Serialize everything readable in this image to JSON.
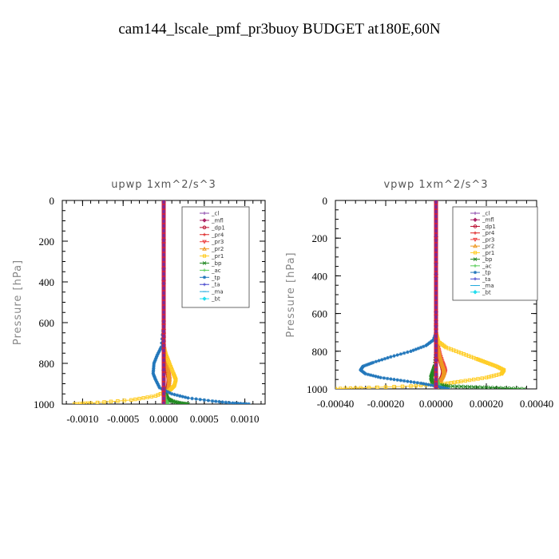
{
  "figure": {
    "title": "cam144_lscale_pmf_pr3buoy  BUDGET at180E,60N"
  },
  "chart_data": [
    {
      "type": "line",
      "title": "upwp   1xm^2/s^3",
      "xlabel": "",
      "ylabel": "Pressure [hPa]",
      "xlim": [
        -0.00125,
        0.00125
      ],
      "ylim": [
        1000,
        0
      ],
      "xticks": [
        -0.001,
        -0.0005,
        0,
        0.0005,
        0.001
      ],
      "xtick_labels": [
        "-0.0010",
        "-0.0005",
        "0.0000",
        "0.0005",
        "0.0010"
      ],
      "yticks": [
        0,
        200,
        400,
        600,
        800,
        1000
      ],
      "ytick_labels": [
        "0",
        "200",
        "400",
        "600",
        "800",
        "1000"
      ],
      "grid": false,
      "legend_position": "top-right",
      "series": [
        {
          "name": "_cl",
          "color": "#8844aa",
          "marker": "plus",
          "x": [
            0,
            0
          ],
          "y": [
            0,
            1000
          ]
        },
        {
          "name": "_mfl",
          "color": "#aa2266",
          "marker": "diamond",
          "x": [
            0,
            0
          ],
          "y": [
            0,
            1000
          ]
        },
        {
          "name": "_dp1",
          "color": "#bb1133",
          "marker": "circle",
          "x": [
            0,
            0,
            0,
            1e-05,
            3e-05,
            5e-05,
            6e-05,
            5e-05,
            3e-05,
            1e-05,
            0
          ],
          "y": [
            0,
            600,
            720,
            760,
            800,
            850,
            880,
            920,
            950,
            980,
            1000
          ]
        },
        {
          "name": "_pr4",
          "color": "#dd2222",
          "marker": "plus",
          "x": [
            0,
            0,
            0,
            1e-05,
            3e-05,
            5e-05,
            6e-05,
            5e-05,
            3e-05,
            1e-05,
            0
          ],
          "y": [
            0,
            600,
            720,
            760,
            800,
            850,
            880,
            920,
            950,
            980,
            1000
          ]
        },
        {
          "name": "_pr3",
          "color": "#ee4444",
          "marker": "triangle-down",
          "x": [
            0,
            0,
            0,
            2e-05,
            4e-05,
            6e-05,
            7e-05,
            6e-05,
            4e-05,
            2e-05,
            0
          ],
          "y": [
            0,
            600,
            720,
            760,
            800,
            850,
            880,
            920,
            950,
            980,
            1000
          ]
        },
        {
          "name": "_pr2",
          "color": "#ee9922",
          "marker": "triangle",
          "x": [
            0,
            0,
            0,
            2e-05,
            4e-05,
            6e-05,
            7e-05,
            6e-05,
            3e-05,
            1e-05,
            0
          ],
          "y": [
            0,
            600,
            720,
            760,
            800,
            850,
            880,
            920,
            950,
            980,
            1000
          ]
        },
        {
          "name": "_pr1",
          "color": "#ffcc22",
          "marker": "square",
          "x": [
            0,
            0,
            0,
            3e-05,
            7e-05,
            0.00012,
            0.00015,
            0.00013,
            8e-05,
            -0.0001,
            -0.0004,
            -0.0009,
            -0.0011
          ],
          "y": [
            0,
            600,
            720,
            760,
            800,
            850,
            880,
            910,
            930,
            960,
            980,
            995,
            1000
          ]
        },
        {
          "name": "_bp",
          "color": "#228822",
          "marker": "x",
          "x": [
            0,
            0,
            0,
            0,
            1e-05,
            3e-05,
            5e-05,
            0.0001,
            0.0002,
            0.0003
          ],
          "y": [
            0,
            600,
            800,
            900,
            940,
            960,
            975,
            985,
            995,
            1000
          ]
        },
        {
          "name": "_ac",
          "color": "#55cc55",
          "marker": "plus",
          "x": [
            0,
            0,
            0,
            1e-05,
            2e-05,
            4e-05,
            5e-05
          ],
          "y": [
            0,
            600,
            900,
            950,
            975,
            990,
            1000
          ]
        },
        {
          "name": "_tp",
          "color": "#2277bb",
          "marker": "asterisk",
          "x": [
            0,
            0,
            -3e-05,
            -8e-05,
            -0.00012,
            -0.00013,
            -0.0001,
            -5e-05,
            0.0001,
            0.0003,
            0.0006,
            0.00085,
            0.00105
          ],
          "y": [
            0,
            600,
            720,
            760,
            800,
            850,
            880,
            920,
            950,
            970,
            985,
            995,
            1000
          ]
        },
        {
          "name": "_ta",
          "color": "#4444cc",
          "marker": "plus",
          "x": [
            0,
            0
          ],
          "y": [
            0,
            1000
          ]
        },
        {
          "name": "_ma",
          "color": "#22aadd",
          "marker": "dash",
          "x": [
            0,
            0
          ],
          "y": [
            0,
            1000
          ]
        },
        {
          "name": "_bt",
          "color": "#22ddee",
          "marker": "diamond",
          "x": [
            0,
            0
          ],
          "y": [
            0,
            1000
          ]
        }
      ]
    },
    {
      "type": "line",
      "title": "vpwp   1xm^2/s^3",
      "xlabel": "",
      "ylabel": "Pressure [hPa]",
      "xlim": [
        -0.0004,
        0.0004
      ],
      "ylim": [
        1000,
        0
      ],
      "xticks": [
        -0.0004,
        -0.0002,
        0,
        0.0002,
        0.0004
      ],
      "xtick_labels": [
        "-0.00040",
        "-0.00020",
        "0.00000",
        "0.00020",
        "0.00040"
      ],
      "yticks": [
        0,
        200,
        400,
        600,
        800,
        1000
      ],
      "ytick_labels": [
        "0",
        "200",
        "400",
        "600",
        "800",
        "1000"
      ],
      "grid": false,
      "legend_position": "top-right",
      "series": [
        {
          "name": "_cl",
          "color": "#8844aa",
          "marker": "plus",
          "x": [
            0,
            0
          ],
          "y": [
            0,
            1000
          ]
        },
        {
          "name": "_mfl",
          "color": "#aa2266",
          "marker": "diamond",
          "x": [
            0,
            0
          ],
          "y": [
            0,
            1000
          ]
        },
        {
          "name": "_dp1",
          "color": "#bb1133",
          "marker": "circle",
          "x": [
            0,
            0,
            0,
            5e-06,
            1e-05,
            1.8e-05,
            2.5e-05,
            2.8e-05,
            2.5e-05,
            1.8e-05,
            1e-05,
            5e-06,
            0
          ],
          "y": [
            0,
            600,
            740,
            780,
            820,
            860,
            890,
            910,
            930,
            950,
            970,
            985,
            1000
          ]
        },
        {
          "name": "_pr4",
          "color": "#dd2222",
          "marker": "plus",
          "x": [
            0,
            0,
            0,
            6e-06,
            1.2e-05,
            2e-05,
            2.8e-05,
            3e-05,
            2.8e-05,
            2e-05,
            1.2e-05,
            5e-06,
            0
          ],
          "y": [
            0,
            600,
            740,
            780,
            820,
            860,
            890,
            910,
            930,
            950,
            970,
            985,
            1000
          ]
        },
        {
          "name": "_pr3",
          "color": "#ee4444",
          "marker": "triangle-down",
          "x": [
            0,
            0,
            0,
            8e-06,
            1.5e-05,
            2.5e-05,
            3.3e-05,
            3.6e-05,
            3.2e-05,
            2.4e-05,
            1.4e-05,
            6e-06,
            0
          ],
          "y": [
            0,
            600,
            740,
            780,
            820,
            860,
            890,
            910,
            930,
            950,
            970,
            985,
            1000
          ]
        },
        {
          "name": "_pr2",
          "color": "#ee9922",
          "marker": "triangle",
          "x": [
            0,
            0,
            0,
            7e-06,
            1.4e-05,
            2.2e-05,
            3e-05,
            3.2e-05,
            2.8e-05,
            2e-05,
            1.2e-05,
            5e-06,
            0
          ],
          "y": [
            0,
            600,
            740,
            780,
            820,
            860,
            890,
            910,
            930,
            950,
            970,
            985,
            1000
          ]
        },
        {
          "name": "_pr1",
          "color": "#ffcc22",
          "marker": "square",
          "x": [
            0,
            0,
            1e-05,
            4e-05,
            0.0001,
            0.00016,
            0.0002,
            0.00024,
            0.00027,
            0.00026,
            0.0002,
            0.0001,
            2e-05,
            -0.0001,
            -0.0003,
            -0.00042
          ],
          "y": [
            0,
            700,
            750,
            780,
            810,
            840,
            860,
            880,
            900,
            920,
            940,
            960,
            975,
            985,
            995,
            1000
          ]
        },
        {
          "name": "_bp",
          "color": "#228822",
          "marker": "x",
          "x": [
            0,
            0,
            0,
            -5e-06,
            -1e-05,
            -1.5e-05,
            -2e-05,
            -1.5e-05,
            0,
            5e-05,
            0.00015,
            0.00025,
            0.00035
          ],
          "y": [
            0,
            600,
            800,
            880,
            900,
            920,
            940,
            960,
            975,
            985,
            990,
            995,
            1000
          ]
        },
        {
          "name": "_ac",
          "color": "#55cc55",
          "marker": "plus",
          "x": [
            0,
            0,
            0,
            5e-06,
            1e-05,
            2e-05,
            3e-05
          ],
          "y": [
            0,
            600,
            900,
            950,
            975,
            990,
            1000
          ]
        },
        {
          "name": "_tp",
          "color": "#2277bb",
          "marker": "asterisk",
          "x": [
            0,
            0,
            -1e-05,
            -4e-05,
            -0.0001,
            -0.00018,
            -0.00025,
            -0.00029,
            -0.0003,
            -0.00028,
            -0.00022,
            -0.00014,
            -6e-05,
            0,
            5e-05
          ],
          "y": [
            0,
            700,
            740,
            770,
            800,
            830,
            860,
            880,
            900,
            920,
            940,
            955,
            970,
            985,
            1000
          ]
        },
        {
          "name": "_ta",
          "color": "#4444cc",
          "marker": "plus",
          "x": [
            0,
            0
          ],
          "y": [
            0,
            1000
          ]
        },
        {
          "name": "_ma",
          "color": "#22aadd",
          "marker": "dash",
          "x": [
            0,
            0
          ],
          "y": [
            0,
            1000
          ]
        },
        {
          "name": "_bt",
          "color": "#22ddee",
          "marker": "diamond",
          "x": [
            0,
            0
          ],
          "y": [
            0,
            1000
          ]
        }
      ]
    }
  ]
}
